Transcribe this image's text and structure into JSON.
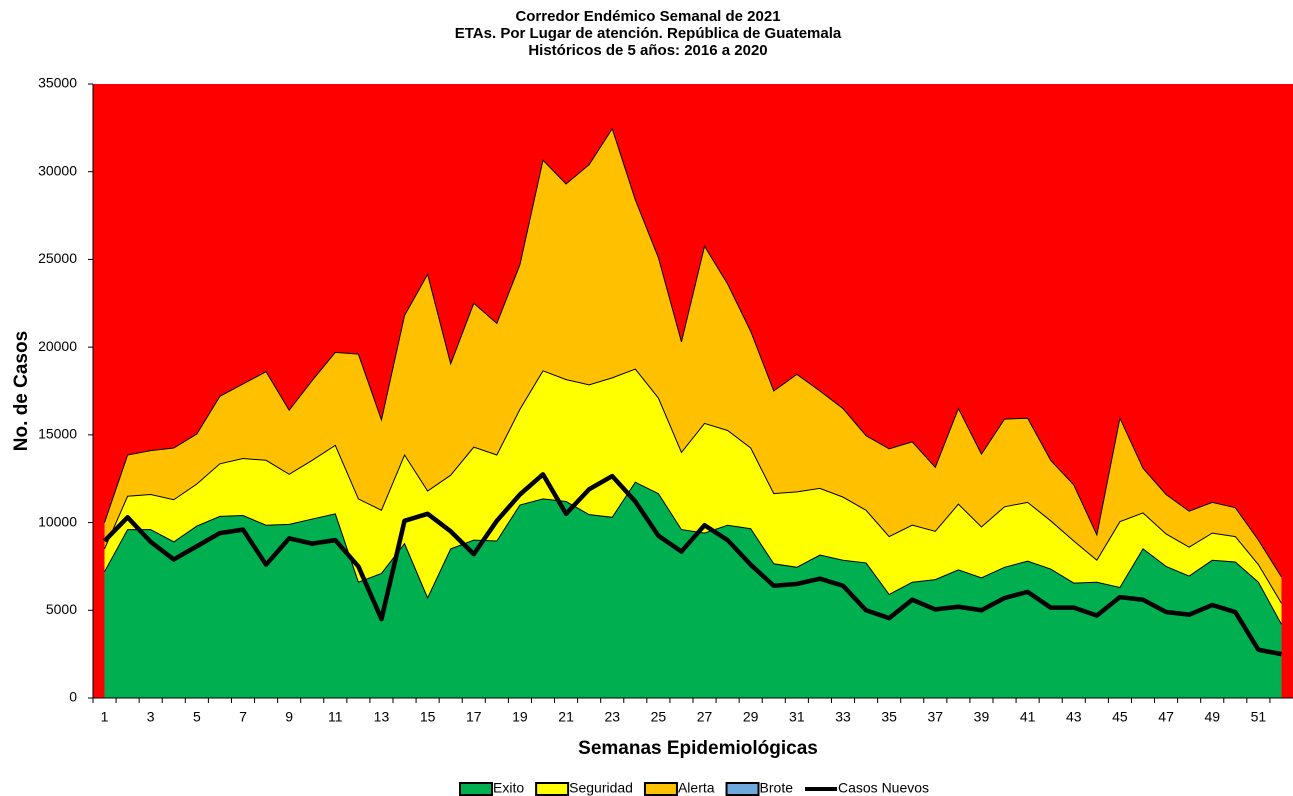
{
  "chart_data": {
    "type": "area",
    "title": [
      "Corredor Endémico Semanal de 2021",
      "ETAs. Por Lugar de atención.  República de Guatemala",
      "Históricos  de 5 años: 2016 a 2020"
    ],
    "xlabel": "Semanas Epidemiológicas",
    "ylabel": "No. de Casos",
    "categories": [
      "1",
      null,
      "3",
      null,
      "5",
      null,
      "7",
      null,
      "9",
      null,
      "11",
      null,
      "13",
      null,
      "15",
      null,
      "17",
      null,
      "19",
      null,
      "21",
      null,
      "23",
      null,
      "25",
      null,
      "27",
      null,
      "29",
      null,
      "31",
      null,
      "33",
      null,
      "35",
      null,
      "37",
      null,
      "39",
      null,
      "41",
      null,
      "43",
      null,
      "45",
      null,
      "47",
      null,
      "49",
      null,
      "51",
      null
    ],
    "ylim": [
      0,
      35000
    ],
    "yticks": [
      0,
      5000,
      10000,
      15000,
      20000,
      25000,
      30000,
      35000
    ],
    "plot_background": "#ff0000",
    "series": [
      {
        "name": "Exito",
        "color": "#00b050",
        "values": [
          7200,
          9600,
          9600,
          8900,
          9800,
          10350,
          10400,
          9850,
          9900,
          10200,
          10500,
          6600,
          7100,
          8800,
          5700,
          8500,
          9000,
          8950,
          11000,
          11350,
          11200,
          10450,
          10300,
          12300,
          11650,
          9600,
          9400,
          9850,
          9650,
          7650,
          7450,
          8150,
          7850,
          7700,
          5900,
          6600,
          6750,
          7300,
          6850,
          7450,
          7800,
          7350,
          6550,
          6600,
          6300,
          8500,
          7500,
          6950,
          7850,
          7750,
          6600,
          4200
        ]
      },
      {
        "name": "Seguridad",
        "color": "#ffff00",
        "values": [
          8500,
          11500,
          11600,
          11300,
          12200,
          13350,
          13650,
          13550,
          12750,
          13550,
          14400,
          11350,
          10700,
          13850,
          11800,
          12700,
          14300,
          13850,
          16450,
          18650,
          18150,
          17850,
          18250,
          18750,
          17100,
          14000,
          15650,
          15250,
          14250,
          11650,
          11750,
          11950,
          11450,
          10700,
          9200,
          9850,
          9500,
          11050,
          9750,
          10900,
          11150,
          10100,
          8950,
          7850,
          10050,
          10550,
          9350,
          8600,
          9400,
          9200,
          7600,
          5400
        ]
      },
      {
        "name": "Alerta",
        "color": "#ffc000",
        "values": [
          10000,
          13850,
          14100,
          14250,
          15050,
          17200,
          17900,
          18600,
          16400,
          18100,
          19700,
          19600,
          15850,
          21800,
          24150,
          19050,
          22500,
          21350,
          24700,
          30650,
          29300,
          30400,
          32450,
          28400,
          25100,
          20300,
          25750,
          23600,
          20900,
          17500,
          18450,
          17500,
          16500,
          14950,
          14200,
          14600,
          13150,
          16500,
          13900,
          15900,
          15950,
          13550,
          12150,
          9300,
          15950,
          13100,
          11600,
          10650,
          11150,
          10850,
          9000,
          6900
        ]
      },
      {
        "name": "Casos Nuevos",
        "type": "line",
        "color": "#000000",
        "values": [
          8950,
          10300,
          8900,
          7900,
          8650,
          9400,
          9600,
          7600,
          9100,
          8800,
          9000,
          7500,
          4500,
          10100,
          10500,
          9500,
          8200,
          10100,
          11600,
          12750,
          10500,
          11900,
          12650,
          11200,
          9250,
          8350,
          9850,
          9000,
          7600,
          6400,
          6500,
          6800,
          6400,
          5000,
          4550,
          5600,
          5050,
          5200,
          5000,
          5700,
          6050,
          5150,
          5150,
          4700,
          5750,
          5600,
          4900,
          4750,
          5300,
          4900,
          2750,
          2500
        ]
      }
    ],
    "brote": {
      "name": "Brote",
      "color": "#6fa8dc"
    }
  }
}
